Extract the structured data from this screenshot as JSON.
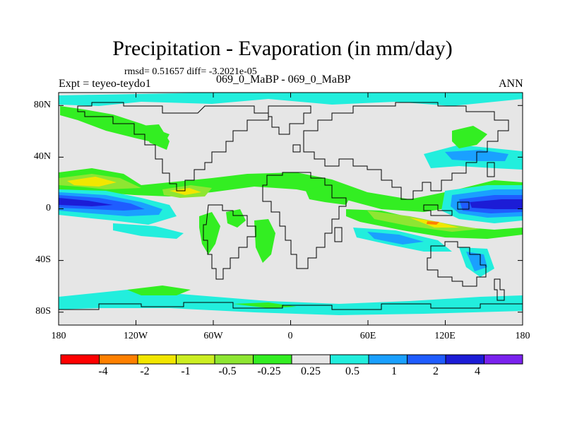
{
  "title": "Precipitation - Evaporation (in mm/day)",
  "stats": "rmsd= 0.51657 diff= -3.2021e-05",
  "expt": "Expt = teyeo-teydo1",
  "case_id": "069_0_MaBP - 069_0_MaBP",
  "season": "ANN",
  "colors": {
    "land_bg": "#e6e6e6",
    "coast": "#000000",
    "bins": [
      "#ff0000",
      "#ff8000",
      "#f2e600",
      "#ccee22",
      "#8ee632",
      "#33ee22",
      "#e6e6e6",
      "#22eedd",
      "#1aa0ff",
      "#1f5cff",
      "#1c1cd6",
      "#7a22ee"
    ]
  },
  "chart_data": {
    "type": "heatmap",
    "title": "Precipitation - Evaporation (in mm/day)",
    "x_ticks": [
      "180",
      "120W",
      "60W",
      "0",
      "60E",
      "120E",
      "180"
    ],
    "x_values": [
      -180,
      -120,
      -60,
      0,
      60,
      120,
      180
    ],
    "y_ticks": [
      "80N",
      "40N",
      "0",
      "40S",
      "80S"
    ],
    "y_values": [
      80,
      40,
      0,
      -40,
      -80
    ],
    "xlim": [
      -180,
      180
    ],
    "ylim": [
      -90,
      90
    ],
    "colorbar_labels": [
      "-4",
      "-2",
      "-1",
      "-0.5",
      "-0.25",
      "0.25",
      "0.5",
      "1",
      "2",
      "4"
    ],
    "colorbar_levels": [
      -4,
      -2,
      -1,
      -0.5,
      -0.25,
      0.25,
      0.5,
      1,
      2,
      4
    ]
  }
}
